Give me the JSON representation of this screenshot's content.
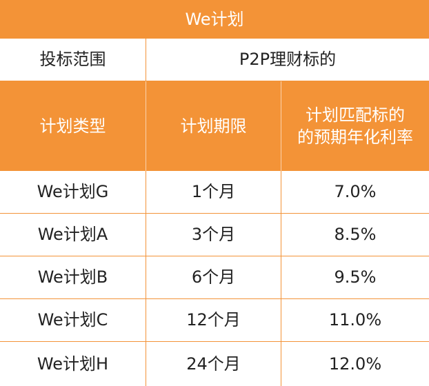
{
  "title": "We计划",
  "scope": {
    "label": "投标范围",
    "value": "P2P理财标的"
  },
  "header": {
    "col1": "计划类型",
    "col2": "计划期限",
    "col3_line1": "计划匹配标的",
    "col3_line2": "的预期年化利率"
  },
  "rows": [
    {
      "type": "We计划G",
      "term": "1个月",
      "rate": "7.0%"
    },
    {
      "type": "We计划A",
      "term": "3个月",
      "rate": "8.5%"
    },
    {
      "type": "We计划B",
      "term": "6个月",
      "rate": "9.5%"
    },
    {
      "type": "We计划C",
      "term": "12个月",
      "rate": "11.0%"
    },
    {
      "type": "We计划H",
      "term": "24个月",
      "rate": "12.0%"
    }
  ],
  "colors": {
    "accent": "#f39337",
    "text": "#222222",
    "header_text": "#ffffff"
  }
}
